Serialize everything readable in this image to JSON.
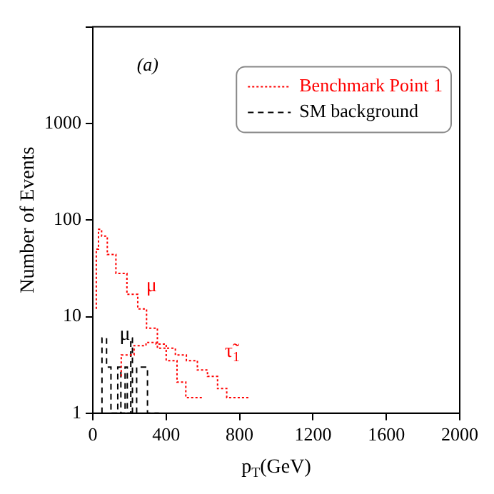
{
  "chart_data": {
    "type": "step",
    "xlabel": "p$_{T}$(GeV)",
    "ylabel": "Number of Events",
    "series": [
      {
        "name": "Benchmark Point 1",
        "color": "#ff0000",
        "line_style": "dotted",
        "x": [
          19,
          31,
          48,
          79,
          126,
          186,
          245,
          293,
          352,
          400,
          459,
          507,
          555,
          602
        ],
        "values": [
          12,
          50,
          80,
          68,
          44,
          28,
          17,
          12,
          7.6,
          4.7,
          3.5,
          2.1,
          1.45,
          1.45
        ]
      },
      {
        "color": "#ff0000",
        "line_style": "dotted",
        "x": [
          155,
          225,
          290,
          345,
          400,
          450,
          510,
          570,
          625,
          680,
          730,
          780,
          850
        ],
        "values": [
          2.4,
          4,
          5,
          5.4,
          5.2,
          4.7,
          4,
          3.5,
          2.8,
          2.4,
          1.8,
          1.45,
          1.45
        ]
      },
      {
        "name": "SM background",
        "color": "#000000",
        "line_style": "dashed",
        "x": [
          50,
          75,
          99,
          136,
          153,
          176,
          188,
          207,
          216,
          239,
          298,
          333,
          360
        ],
        "values": [
          1,
          6,
          3,
          1,
          3,
          1,
          3,
          1,
          6,
          1,
          3,
          1,
          1
        ]
      }
    ],
    "xlim": [
      0,
      2000
    ],
    "xticks": [
      0,
      400,
      800,
      1200,
      1600,
      2000
    ],
    "ylim": [
      1,
      10000
    ],
    "yticks": [
      1,
      10,
      100,
      1000,
      {
        "value": 10000,
        "label": null
      }
    ],
    "log": "y",
    "grid": false,
    "legend": "top right",
    "annotations": [
      "(a)",
      "μ",
      {
        "text": "μ",
        "x": 175,
        "y": 6.5
      },
      "τ̃$_{1}$"
    ]
  }
}
